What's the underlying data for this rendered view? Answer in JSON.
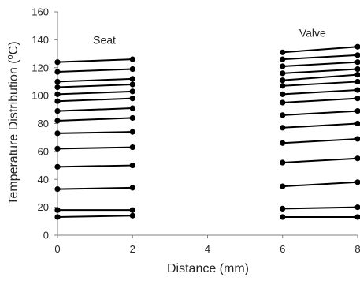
{
  "chart_data": {
    "type": "line",
    "xlabel": "Distance (mm)",
    "ylabel": "Temperature Distribution (",
    "ylabel_sup": "o",
    "ylabel_unit": "C)",
    "xlim": [
      0,
      8
    ],
    "ylim": [
      0,
      160
    ],
    "x_ticks": [
      "0",
      "2",
      "4",
      "6",
      "8"
    ],
    "y_ticks": [
      "0",
      "20",
      "40",
      "60",
      "80",
      "100",
      "120",
      "140",
      "160"
    ],
    "grid": false,
    "legend": "none",
    "annotations": [
      {
        "text": "Seat",
        "x": 1.25,
        "y": 140
      },
      {
        "text": "Valve",
        "x": 6.8,
        "y": 145
      }
    ],
    "groups": [
      {
        "name": "Seat",
        "x": [
          0,
          2
        ],
        "series": [
          [
            13,
            14
          ],
          [
            18,
            18
          ],
          [
            33,
            34
          ],
          [
            49,
            50
          ],
          [
            62,
            63
          ],
          [
            73,
            74
          ],
          [
            82,
            84
          ],
          [
            89,
            91
          ],
          [
            96,
            98
          ],
          [
            101,
            103
          ],
          [
            106,
            108
          ],
          [
            110,
            112
          ],
          [
            117,
            119
          ],
          [
            124,
            126
          ]
        ]
      },
      {
        "name": "Valve",
        "x": [
          6,
          8
        ],
        "series": [
          [
            13,
            13
          ],
          [
            19,
            20
          ],
          [
            35,
            38
          ],
          [
            52,
            55
          ],
          [
            66,
            69
          ],
          [
            77,
            80
          ],
          [
            86,
            89
          ],
          [
            95,
            98
          ],
          [
            101,
            104
          ],
          [
            107,
            110
          ],
          [
            111,
            115
          ],
          [
            116,
            119
          ],
          [
            121,
            124
          ],
          [
            126,
            129
          ],
          [
            131,
            135
          ]
        ]
      }
    ]
  },
  "colors": {
    "line": "#000000",
    "axis": "#808080",
    "text": "#262626"
  }
}
